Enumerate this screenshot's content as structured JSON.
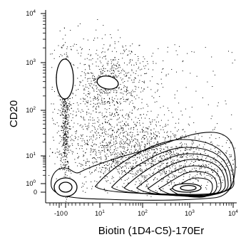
{
  "chart_data": {
    "type": "scatter",
    "title": "",
    "plot_style": "flow cytometry dot plot with density contours",
    "xlabel": "Biotin (1D4-C5)-170Er",
    "ylabel": "CD20",
    "x_scale": "arcsinh (biexponential)",
    "y_scale": "arcsinh (biexponential)",
    "xlim": [
      -150,
      10000
    ],
    "ylim": [
      -1,
      10000
    ],
    "grid": false,
    "legend": "none",
    "x_ticks": [
      {
        "label": "-10",
        "value": -10
      },
      {
        "label": "0",
        "value": 0
      },
      {
        "label": "10",
        "sup": "1",
        "value": 10
      },
      {
        "label": "10",
        "sup": "2",
        "value": 100
      },
      {
        "label": "10",
        "sup": "3",
        "value": 1000
      },
      {
        "label": "10",
        "sup": "4",
        "value": 10000
      }
    ],
    "y_ticks": [
      {
        "label": "0",
        "value": 0
      },
      {
        "label": "10",
        "sup": "0",
        "value": 1
      },
      {
        "label": "10",
        "sup": "1",
        "value": 10
      },
      {
        "label": "10",
        "sup": "2",
        "value": 100
      },
      {
        "label": "10",
        "sup": "3",
        "value": 1000
      },
      {
        "label": "10",
        "sup": "4",
        "value": 10000
      }
    ],
    "populations": [
      {
        "name": "",
        "x_center": 0,
        "y_center": 400,
        "note": "CD20 high, biotin negative"
      },
      {
        "name": "",
        "x_center": 30,
        "y_center": 300,
        "note": "CD20 high, biotin low"
      },
      {
        "name": "",
        "x_center": 800,
        "y_center": 1,
        "note": "CD20 low, biotin high, densest"
      },
      {
        "name": "",
        "x_center": 0,
        "y_center": 1,
        "note": "double negative"
      }
    ],
    "colors": {
      "dots": "#000000",
      "contours": "#000000",
      "background": "#ffffff"
    }
  }
}
